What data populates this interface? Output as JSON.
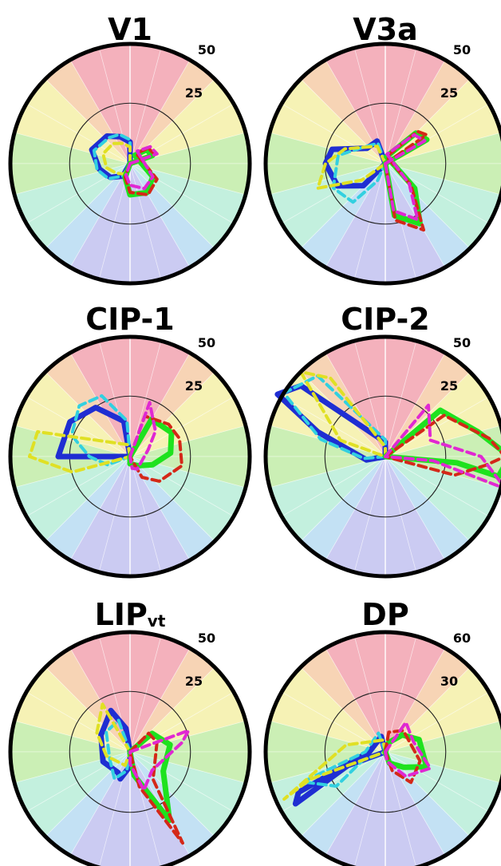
{
  "colors": {
    "sector_bands": [
      "#f2a3b0",
      "#f6cda8",
      "#f4f0a8",
      "#c2eca8",
      "#b8edd8",
      "#b8dcf2",
      "#c2c2f0"
    ],
    "series": {
      "blue": "#1f2ed2",
      "cyan": "#32d0e0",
      "yellow": "#e0e024",
      "green": "#1ee21e",
      "red": "#d42818",
      "magenta": "#e028d2"
    }
  },
  "chart_data": [
    {
      "type": "radar",
      "title": "V1",
      "title_sub": "",
      "ticks": [
        "25",
        "50"
      ],
      "rmax": 50,
      "series": [
        {
          "color": "blue",
          "style": "solid",
          "points": [
            [
              90,
              9
            ],
            [
              110,
              12
            ],
            [
              130,
              15
            ],
            [
              160,
              17
            ],
            [
              190,
              13
            ],
            [
              215,
              10
            ],
            [
              240,
              6
            ]
          ]
        },
        {
          "color": "cyan",
          "style": "dashed",
          "points": [
            [
              90,
              10
            ],
            [
              110,
              13
            ],
            [
              130,
              14
            ],
            [
              160,
              16
            ],
            [
              190,
              14
            ],
            [
              215,
              11
            ],
            [
              240,
              6
            ]
          ]
        },
        {
          "color": "yellow",
          "style": "dashed",
          "points": [
            [
              90,
              7
            ],
            [
              110,
              9
            ],
            [
              130,
              11
            ],
            [
              160,
              12
            ],
            [
              190,
              10
            ],
            [
              215,
              7
            ],
            [
              240,
              5
            ]
          ]
        },
        {
          "color": "green",
          "style": "solid",
          "points": [
            [
              20,
              10
            ],
            [
              40,
              9
            ],
            [
              60,
              4
            ],
            [
              330,
              11
            ],
            [
              300,
              14
            ],
            [
              270,
              13
            ],
            [
              250,
              6
            ]
          ]
        },
        {
          "color": "red",
          "style": "dashed",
          "points": [
            [
              20,
              11
            ],
            [
              40,
              10
            ],
            [
              60,
              5
            ],
            [
              330,
              13
            ],
            [
              300,
              15
            ],
            [
              270,
              12
            ],
            [
              250,
              6
            ]
          ]
        },
        {
          "color": "magenta",
          "style": "dashed",
          "points": [
            [
              20,
              12
            ],
            [
              40,
              11
            ],
            [
              60,
              6
            ],
            [
              330,
              11
            ],
            [
              300,
              12
            ],
            [
              270,
              9
            ],
            [
              250,
              5
            ]
          ]
        }
      ]
    },
    {
      "type": "radar",
      "title": "V3a",
      "title_sub": "",
      "ticks": [
        "25",
        "50"
      ],
      "rmax": 50,
      "series": [
        {
          "color": "blue",
          "style": "solid",
          "points": [
            [
              110,
              10
            ],
            [
              140,
              10
            ],
            [
              165,
              23
            ],
            [
              180,
              25
            ],
            [
              205,
              22
            ],
            [
              225,
              13
            ]
          ]
        },
        {
          "color": "cyan",
          "style": "dashed",
          "points": [
            [
              110,
              9
            ],
            [
              140,
              11
            ],
            [
              170,
              20
            ],
            [
              205,
              24
            ],
            [
              230,
              21
            ],
            [
              245,
              8
            ]
          ]
        },
        {
          "color": "yellow",
          "style": "dashed",
          "points": [
            [
              115,
              8
            ],
            [
              160,
              18
            ],
            [
              180,
              25
            ],
            [
              200,
              30
            ],
            [
              215,
              12
            ]
          ]
        },
        {
          "color": "green",
          "style": "solid",
          "points": [
            [
              30,
              20
            ],
            [
              45,
              18
            ],
            [
              80,
              3
            ],
            [
              320,
              16
            ],
            [
              300,
              29
            ],
            [
              280,
              22
            ]
          ]
        },
        {
          "color": "red",
          "style": "dashed",
          "points": [
            [
              35,
              21
            ],
            [
              45,
              19
            ],
            [
              80,
              3
            ],
            [
              320,
              14
            ],
            [
              300,
              32
            ],
            [
              280,
              24
            ]
          ]
        },
        {
          "color": "magenta",
          "style": "dashed",
          "points": [
            [
              30,
              19
            ],
            [
              45,
              17
            ],
            [
              80,
              4
            ],
            [
              320,
              13
            ],
            [
              300,
              27
            ],
            [
              280,
              20
            ]
          ]
        }
      ]
    },
    {
      "type": "radar",
      "title": "CIP-1",
      "title_sub": "",
      "ticks": [
        "25",
        "50"
      ],
      "rmax": 50,
      "series": [
        {
          "color": "blue",
          "style": "solid",
          "points": [
            [
              100,
              15
            ],
            [
              125,
              25
            ],
            [
              150,
              29
            ],
            [
              180,
              30
            ]
          ]
        },
        {
          "color": "cyan",
          "style": "dashed",
          "points": [
            [
              95,
              15
            ],
            [
              115,
              28
            ],
            [
              135,
              30
            ],
            [
              160,
              26
            ],
            [
              180,
              17
            ],
            [
              200,
              10
            ]
          ]
        },
        {
          "color": "yellow",
          "style": "dashed",
          "points": [
            [
              100,
              5
            ],
            [
              165,
              40
            ],
            [
              180,
              42
            ],
            [
              195,
              25
            ]
          ]
        },
        {
          "color": "green",
          "style": "solid",
          "points": [
            [
              60,
              18
            ],
            [
              30,
              20
            ],
            [
              5,
              17
            ],
            [
              340,
              10
            ],
            [
              310,
              5
            ],
            [
              270,
              3
            ]
          ]
        },
        {
          "color": "red",
          "style": "dashed",
          "points": [
            [
              70,
              18
            ],
            [
              40,
              21
            ],
            [
              20,
              22
            ],
            [
              350,
              22
            ],
            [
              320,
              16
            ],
            [
              300,
              10
            ]
          ]
        },
        {
          "color": "magenta",
          "style": "dashed",
          "points": [
            [
              70,
              24
            ],
            [
              45,
              15
            ],
            [
              20,
              8
            ],
            [
              300,
              6
            ],
            [
              280,
              5
            ]
          ]
        }
      ]
    },
    {
      "type": "radar",
      "title": "CIP-2",
      "title_sub": "",
      "ticks": [
        "25",
        "50"
      ],
      "rmax": 50,
      "series": [
        {
          "color": "blue",
          "style": "solid",
          "points": [
            [
              90,
              6
            ],
            [
              140,
              46
            ],
            [
              150,
              52
            ],
            [
              160,
              30
            ],
            [
              190,
              8
            ]
          ]
        },
        {
          "color": "cyan",
          "style": "dashed",
          "points": [
            [
              90,
              7
            ],
            [
              130,
              44
            ],
            [
              148,
              50
            ],
            [
              165,
              28
            ],
            [
              185,
              9
            ]
          ]
        },
        {
          "color": "yellow",
          "style": "dashed",
          "points": [
            [
              90,
              4
            ],
            [
              125,
              40
            ],
            [
              135,
              50
            ],
            [
              160,
              20
            ]
          ]
        },
        {
          "color": "green",
          "style": "solid",
          "points": [
            [
              40,
              30
            ],
            [
              15,
              40
            ],
            [
              0,
              52
            ],
            [
              350,
              48
            ],
            [
              355,
              30
            ]
          ]
        },
        {
          "color": "red",
          "style": "dashed",
          "points": [
            [
              35,
              30
            ],
            [
              10,
              44
            ],
            [
              0,
              50
            ],
            [
              355,
              42
            ],
            [
              345,
              30
            ]
          ]
        },
        {
          "color": "magenta",
          "style": "dashed",
          "points": [
            [
              50,
              28
            ],
            [
              20,
              20
            ],
            [
              0,
              40
            ],
            [
              345,
              52
            ],
            [
              355,
              20
            ]
          ]
        }
      ]
    },
    {
      "type": "radar",
      "title": "LIP",
      "title_sub": "vt",
      "ticks": [
        "25",
        "50"
      ],
      "rmax": 50,
      "series": [
        {
          "color": "blue",
          "style": "solid",
          "points": [
            [
              100,
              10
            ],
            [
              115,
              19
            ],
            [
              150,
              14
            ],
            [
              200,
              12
            ],
            [
              240,
              10
            ],
            [
              250,
              12
            ],
            [
              270,
              6
            ]
          ]
        },
        {
          "color": "cyan",
          "style": "dashed",
          "points": [
            [
              110,
              14
            ],
            [
              140,
              13
            ],
            [
              200,
              9
            ],
            [
              240,
              13
            ],
            [
              260,
              8
            ]
          ]
        },
        {
          "color": "yellow",
          "style": "dashed",
          "points": [
            [
              120,
              23
            ],
            [
              150,
              16
            ],
            [
              190,
              10
            ],
            [
              250,
              6
            ]
          ]
        },
        {
          "color": "green",
          "style": "solid",
          "points": [
            [
              40,
              12
            ],
            [
              10,
              17
            ],
            [
              330,
              16
            ],
            [
              300,
              33
            ],
            [
              280,
              10
            ]
          ]
        },
        {
          "color": "red",
          "style": "dashed",
          "points": [
            [
              45,
              11
            ],
            [
              20,
              12
            ],
            [
              310,
              15
            ],
            [
              300,
              44
            ],
            [
              285,
              15
            ]
          ]
        },
        {
          "color": "magenta",
          "style": "dashed",
          "points": [
            [
              20,
              26
            ],
            [
              10,
              22
            ],
            [
              320,
              12
            ],
            [
              290,
              17
            ],
            [
              270,
              5
            ]
          ]
        }
      ]
    },
    {
      "type": "radar",
      "title": "DP",
      "title_sub": "",
      "ticks": [
        "30",
        "60"
      ],
      "rmax": 60,
      "series": [
        {
          "color": "blue",
          "style": "solid",
          "points": [
            [
              105,
              8
            ],
            [
              180,
              8
            ],
            [
              205,
              48
            ],
            [
              210,
              52
            ],
            [
              200,
              20
            ]
          ]
        },
        {
          "color": "cyan",
          "style": "dashed",
          "points": [
            [
              110,
              10
            ],
            [
              180,
              10
            ],
            [
              200,
              44
            ],
            [
              215,
              30
            ],
            [
              200,
              12
            ]
          ]
        },
        {
          "color": "yellow",
          "style": "dashed",
          "points": [
            [
              100,
              6
            ],
            [
              170,
              20
            ],
            [
              205,
              56
            ],
            [
              200,
              40
            ]
          ]
        },
        {
          "color": "green",
          "style": "solid",
          "points": [
            [
              70,
              5
            ],
            [
              45,
              12
            ],
            [
              20,
              18
            ],
            [
              340,
              22
            ],
            [
              320,
              12
            ],
            [
              290,
              6
            ]
          ]
        },
        {
          "color": "red",
          "style": "dashed",
          "points": [
            [
              80,
              10
            ],
            [
              50,
              14
            ],
            [
              345,
              18
            ],
            [
              310,
              20
            ],
            [
              290,
              10
            ]
          ]
        },
        {
          "color": "magenta",
          "style": "dashed",
          "points": [
            [
              55,
              18
            ],
            [
              20,
              15
            ],
            [
              340,
              24
            ],
            [
              310,
              16
            ],
            [
              280,
              5
            ]
          ]
        }
      ]
    }
  ]
}
